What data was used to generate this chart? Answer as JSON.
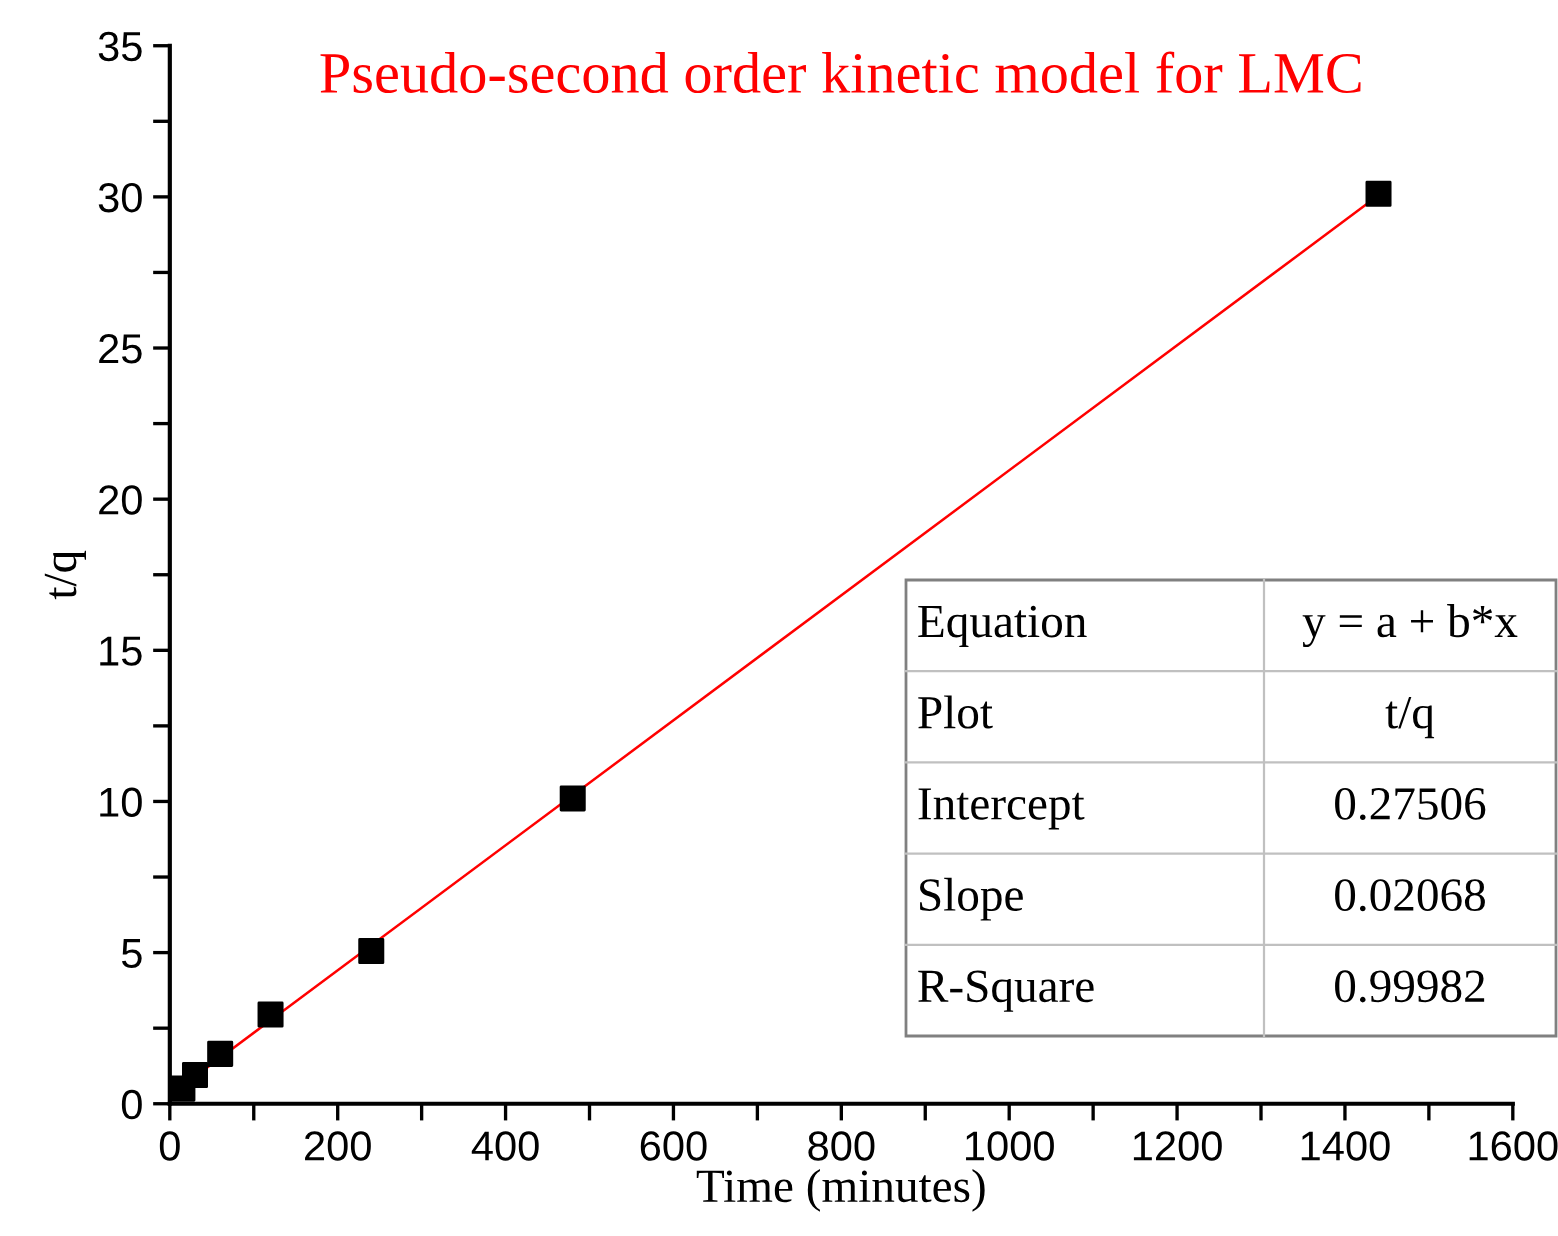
{
  "chart_data": {
    "type": "scatter",
    "title": "Pseudo-second order kinetic model for LMC",
    "xlabel": "Time (minutes)",
    "ylabel": "t/q",
    "x": [
      15,
      30,
      60,
      120,
      240,
      480,
      1440
    ],
    "series": [
      {
        "color": "#000000",
        "marker": "square",
        "values": [
          0.5,
          0.95,
          1.65,
          2.95,
          5.05,
          10.1,
          30.1
        ]
      },
      {
        "type": "line",
        "color": "#ff0000",
        "marker": "none",
        "line_style": "solid",
        "x": [
          15,
          1440
        ],
        "values": [
          0.59,
          30.05
        ]
      }
    ],
    "xlim": [
      0,
      1600
    ],
    "ylim": [
      0,
      35
    ],
    "xticks": [
      0,
      {
        "value": 100,
        "label": null
      },
      200,
      {
        "value": 300,
        "label": null
      },
      400,
      {
        "value": 500,
        "label": null
      },
      600,
      {
        "value": 700,
        "label": null
      },
      800,
      {
        "value": 900,
        "label": null
      },
      1000,
      {
        "value": 1100,
        "label": null
      },
      1200,
      {
        "value": 1300,
        "label": null
      },
      1400,
      {
        "value": 1500,
        "label": null
      },
      1600
    ],
    "yticks": [
      0,
      {
        "value": 2.5,
        "label": null
      },
      5,
      {
        "value": 7.5,
        "label": null
      },
      10,
      {
        "value": 12.5,
        "label": null
      },
      15,
      {
        "value": 17.5,
        "label": null
      },
      20,
      {
        "value": 22.5,
        "label": null
      },
      25,
      {
        "value": 27.5,
        "label": null
      },
      30,
      {
        "value": 32.5,
        "label": null
      },
      35
    ],
    "grid": false,
    "annotations": [
      "Equation",
      "y = a + b*x",
      "Plot",
      "t/q",
      "Intercept",
      "0.27506",
      "Slope",
      "0.02068",
      "R-Square",
      "0.99982"
    ]
  }
}
